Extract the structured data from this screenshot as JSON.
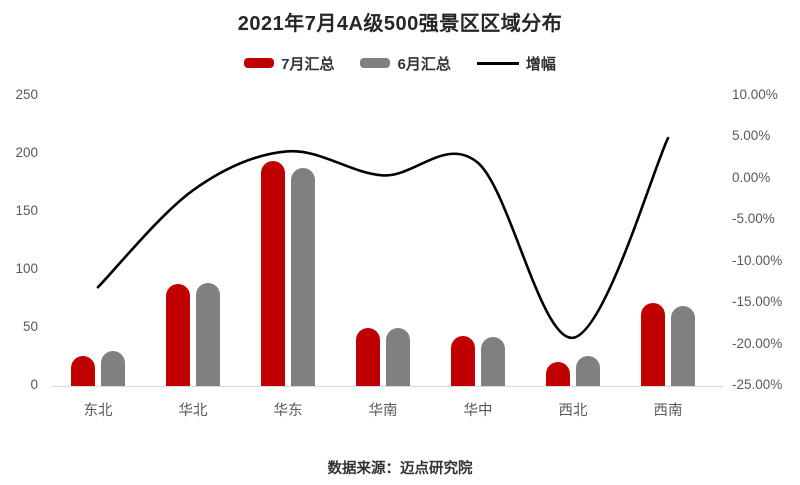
{
  "title": "2021年7月4A级500强景区区域分布",
  "legend": {
    "july_label": "7月汇总",
    "june_label": "6月汇总",
    "growth_label": "增幅"
  },
  "footer": {
    "source": "数据来源：迈点研究院"
  },
  "colors": {
    "july_bar": "#C00000",
    "june_bar": "#808080",
    "growth_line": "#000000",
    "axis_text": "#595959",
    "baseline": "#D9D9D9"
  },
  "chart_data": {
    "type": "bar+line",
    "title": "2021年7月4A级500强景区区域分布",
    "categories": [
      "东北",
      "华北",
      "华东",
      "华南",
      "华中",
      "西北",
      "西南"
    ],
    "series": [
      {
        "name": "7月汇总",
        "type": "bar",
        "axis": "left",
        "color": "#C00000",
        "values": [
          25,
          87,
          193,
          49,
          42,
          20,
          71
        ]
      },
      {
        "name": "6月汇总",
        "type": "bar",
        "axis": "left",
        "color": "#808080",
        "values": [
          29,
          88,
          187,
          49,
          41,
          25,
          68
        ]
      },
      {
        "name": "增幅",
        "type": "line",
        "axis": "right",
        "color": "#000000",
        "values_percent": [
          -13.2,
          -1.5,
          3.2,
          0.3,
          1.8,
          -19.3,
          4.8
        ]
      }
    ],
    "left_axis": {
      "min": 0,
      "max": 250,
      "step": 50,
      "ticks": [
        "250",
        "200",
        "150",
        "100",
        "50",
        "0"
      ]
    },
    "right_axis": {
      "min": -25,
      "max": 10,
      "step": 5,
      "format": "percent",
      "ticks": [
        "10.00%",
        "5.00%",
        "0.00%",
        "-5.00%",
        "-10.00%",
        "-15.00%",
        "-20.00%",
        "-25.00%"
      ]
    },
    "legend_position": "top",
    "grid": false,
    "source_note": "数据来源：迈点研究院"
  }
}
